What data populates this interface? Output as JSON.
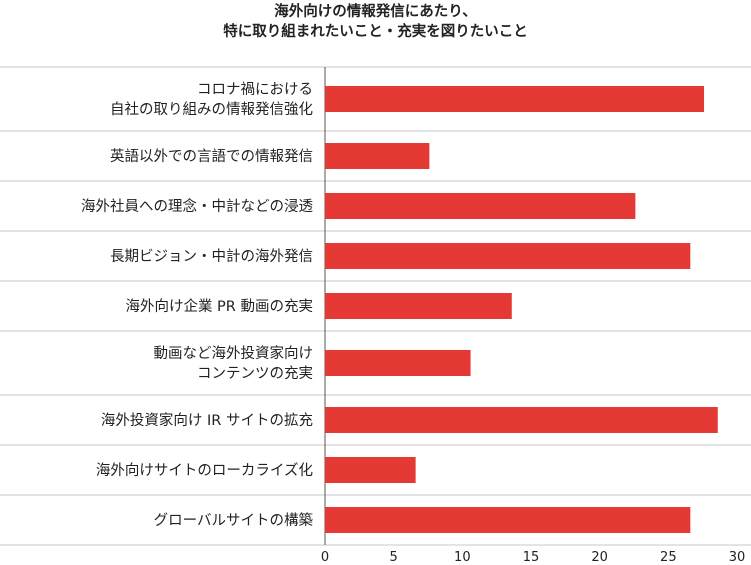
{
  "chart_data": {
    "type": "bar",
    "orientation": "horizontal",
    "title_lines": [
      "海外向けの情報発信にあたり、",
      "特に取り組まれたいこと・充実を図りたいこと"
    ],
    "categories": [
      [
        "コロナ禍における",
        "自社の取り組みの情報発信強化"
      ],
      [
        "英語以外での言語での情報発信"
      ],
      [
        "海外社員への理念・中計などの浸透"
      ],
      [
        "長期ビジョン・中計の海外発信"
      ],
      [
        "海外向け企業 PR 動画の充実"
      ],
      [
        "動画など海外投資家向け",
        "コンテンツの充実"
      ],
      [
        "海外投資家向け IR サイトの拡充"
      ],
      [
        "海外向けサイトのローカライズ化"
      ],
      [
        "グローバルサイトの構築"
      ]
    ],
    "values": [
      27.6,
      7.6,
      22.6,
      26.6,
      13.6,
      10.6,
      28.6,
      6.6,
      26.6
    ],
    "xlim": [
      0,
      30
    ],
    "xticks": [
      0,
      5,
      10,
      15,
      20,
      25,
      30
    ],
    "grid": false,
    "legend": "none",
    "colors": {
      "bar": "#e53935",
      "separator": "#c8c8c8",
      "axis": "#555555"
    }
  }
}
